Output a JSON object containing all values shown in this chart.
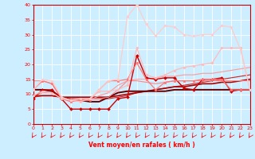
{
  "xlabel": "Vent moyen/en rafales ( km/h )",
  "xlim": [
    0,
    23
  ],
  "ylim": [
    0,
    40
  ],
  "yticks": [
    0,
    5,
    10,
    15,
    20,
    25,
    30,
    35,
    40
  ],
  "xticks": [
    0,
    1,
    2,
    3,
    4,
    5,
    6,
    7,
    8,
    9,
    10,
    11,
    12,
    13,
    14,
    15,
    16,
    17,
    18,
    19,
    20,
    21,
    22,
    23
  ],
  "bg_color": "#cceeff",
  "grid_color": "#ffffff",
  "series": [
    {
      "x": [
        0,
        1,
        2,
        3,
        4,
        5,
        6,
        7,
        8,
        9,
        10,
        11,
        12,
        13,
        14,
        15,
        16,
        17,
        18,
        19,
        20,
        21,
        22,
        23
      ],
      "y": [
        8.5,
        11.5,
        11.5,
        8.5,
        5.0,
        5.0,
        5.0,
        5.0,
        5.0,
        8.5,
        9.0,
        23.0,
        15.5,
        15.0,
        15.5,
        15.5,
        12.0,
        11.5,
        15.0,
        15.0,
        15.5,
        11.0,
        11.5,
        11.5
      ],
      "color": "#cc0000",
      "lw": 1.0,
      "marker": "D",
      "ms": 2.0
    },
    {
      "x": [
        0,
        1,
        2,
        3,
        4,
        5,
        6,
        7,
        8,
        9,
        10,
        11,
        12,
        13,
        14,
        15,
        16,
        17,
        18,
        19,
        20,
        21,
        22,
        23
      ],
      "y": [
        9.0,
        9.5,
        9.5,
        9.0,
        8.5,
        8.5,
        8.5,
        8.5,
        8.5,
        9.0,
        9.5,
        10.5,
        11.0,
        11.5,
        12.0,
        12.5,
        13.0,
        13.5,
        14.0,
        14.5,
        15.0,
        15.5,
        16.0,
        16.5
      ],
      "color": "#cc2222",
      "lw": 0.8,
      "marker": null,
      "ms": 0
    },
    {
      "x": [
        0,
        1,
        2,
        3,
        4,
        5,
        6,
        7,
        8,
        9,
        10,
        11,
        12,
        13,
        14,
        15,
        16,
        17,
        18,
        19,
        20,
        21,
        22,
        23
      ],
      "y": [
        9.5,
        9.5,
        9.5,
        9.0,
        9.0,
        9.0,
        9.0,
        9.0,
        9.0,
        9.5,
        10.0,
        10.5,
        11.0,
        11.5,
        12.0,
        12.5,
        12.5,
        13.0,
        13.5,
        13.5,
        14.0,
        14.0,
        14.5,
        15.0
      ],
      "color": "#aa0000",
      "lw": 1.2,
      "marker": null,
      "ms": 0
    },
    {
      "x": [
        0,
        1,
        2,
        3,
        4,
        5,
        6,
        7,
        8,
        9,
        10,
        11,
        12,
        13,
        14,
        15,
        16,
        17,
        18,
        19,
        20,
        21,
        22,
        23
      ],
      "y": [
        11.5,
        11.5,
        11.0,
        9.0,
        8.0,
        8.0,
        7.5,
        7.5,
        9.0,
        10.5,
        11.0,
        11.0,
        11.0,
        11.0,
        11.0,
        11.5,
        11.5,
        11.5,
        11.5,
        11.5,
        11.5,
        11.5,
        11.5,
        11.5
      ],
      "color": "#660000",
      "lw": 1.4,
      "marker": null,
      "ms": 0
    },
    {
      "x": [
        0,
        1,
        2,
        3,
        4,
        5,
        6,
        7,
        8,
        9,
        10,
        11,
        12,
        13,
        14,
        15,
        16,
        17,
        18,
        19,
        20,
        21,
        22,
        23
      ],
      "y": [
        11.5,
        14.5,
        13.5,
        8.5,
        7.5,
        8.0,
        8.0,
        11.5,
        14.5,
        14.5,
        15.0,
        20.5,
        15.0,
        11.5,
        14.0,
        14.5,
        14.5,
        14.5,
        15.0,
        15.0,
        15.0,
        11.5,
        11.5,
        11.5
      ],
      "color": "#ff7777",
      "lw": 0.9,
      "marker": "o",
      "ms": 2.0
    },
    {
      "x": [
        0,
        1,
        2,
        3,
        4,
        5,
        6,
        7,
        8,
        9,
        10,
        11,
        12,
        13,
        14,
        15,
        16,
        17,
        18,
        19,
        20,
        21,
        22,
        23
      ],
      "y": [
        14.5,
        14.5,
        13.5,
        9.0,
        8.0,
        8.0,
        8.5,
        8.5,
        9.0,
        11.5,
        14.5,
        14.5,
        14.0,
        13.5,
        14.0,
        14.5,
        14.5,
        14.5,
        14.5,
        14.5,
        14.5,
        14.5,
        14.5,
        14.5
      ],
      "color": "#ff8888",
      "lw": 0.8,
      "marker": null,
      "ms": 0
    },
    {
      "x": [
        0,
        1,
        2,
        3,
        4,
        5,
        6,
        7,
        8,
        9,
        10,
        11,
        12,
        13,
        14,
        15,
        16,
        17,
        18,
        19,
        20,
        21,
        22,
        23
      ],
      "y": [
        9.5,
        11.0,
        10.5,
        8.5,
        8.0,
        7.5,
        8.5,
        11.0,
        11.0,
        11.5,
        13.0,
        25.5,
        16.5,
        15.5,
        16.5,
        18.0,
        19.0,
        19.5,
        20.0,
        20.5,
        25.5,
        25.5,
        25.5,
        11.5
      ],
      "color": "#ffbbbb",
      "lw": 0.9,
      "marker": "o",
      "ms": 2.0
    },
    {
      "x": [
        0,
        1,
        2,
        3,
        4,
        5,
        6,
        7,
        8,
        9,
        10,
        11,
        12,
        13,
        14,
        15,
        16,
        17,
        18,
        19,
        20,
        21,
        22,
        23
      ],
      "y": [
        9.0,
        10.5,
        10.5,
        8.5,
        8.0,
        8.0,
        8.0,
        9.5,
        10.5,
        13.0,
        14.5,
        15.0,
        15.0,
        15.5,
        16.0,
        16.0,
        16.5,
        16.5,
        17.0,
        17.0,
        17.5,
        18.0,
        18.5,
        19.0
      ],
      "color": "#ff9999",
      "lw": 0.8,
      "marker": null,
      "ms": 0
    },
    {
      "x": [
        0,
        1,
        2,
        3,
        4,
        5,
        6,
        7,
        8,
        9,
        10,
        11,
        12,
        13,
        14,
        15,
        16,
        17,
        18,
        19,
        20,
        21,
        22,
        23
      ],
      "y": [
        11.5,
        15.0,
        14.5,
        9.0,
        8.0,
        8.5,
        8.5,
        11.5,
        14.5,
        15.0,
        36.0,
        40.0,
        33.5,
        29.5,
        33.0,
        32.5,
        30.0,
        29.5,
        30.0,
        30.0,
        33.0,
        32.5,
        25.0,
        11.5
      ],
      "color": "#ffcccc",
      "lw": 0.9,
      "marker": "o",
      "ms": 2.0
    }
  ]
}
